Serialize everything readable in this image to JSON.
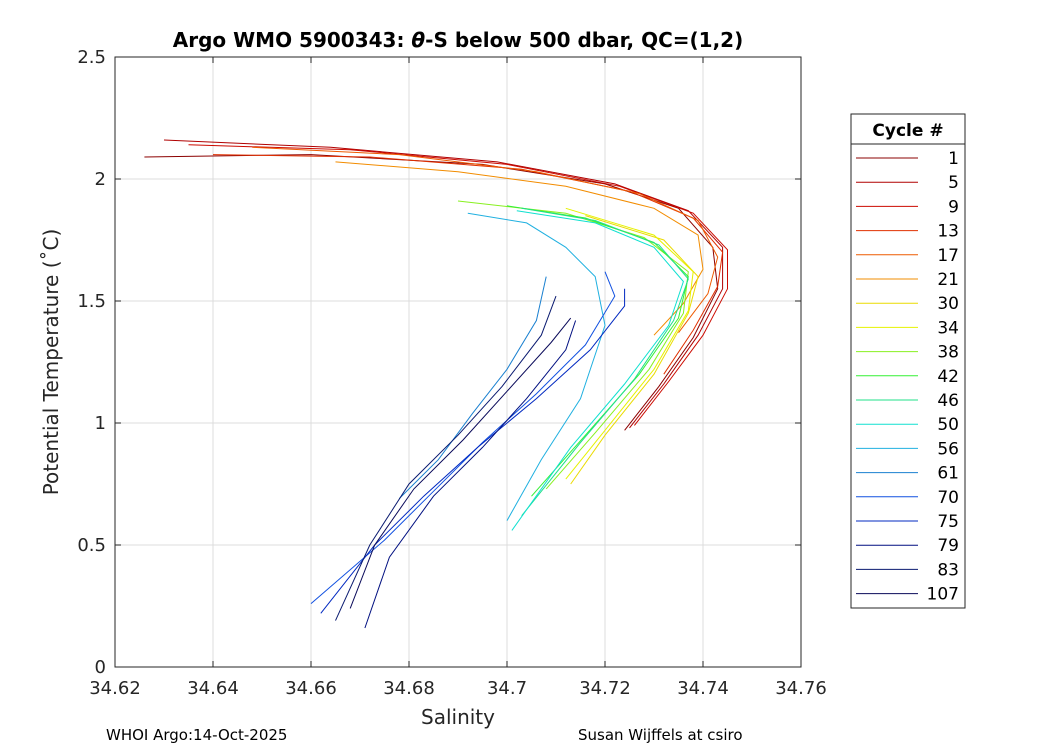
{
  "chart_data": {
    "type": "line",
    "title": "Argo WMO 5900343: θ-S below 500 dbar,  QC=(1,2)",
    "title_parts": [
      "Argo WMO 5900343: ",
      "θ",
      "-S below 500 dbar,  QC=(1,2)"
    ],
    "xlabel": "Salinity",
    "ylabel": "Potential Temperature (˚C)",
    "xlim": [
      34.62,
      34.76
    ],
    "ylim": [
      0,
      2.5
    ],
    "xticks": [
      34.62,
      34.64,
      34.66,
      34.68,
      34.7,
      34.72,
      34.74,
      34.76
    ],
    "xtick_labels": [
      "34.62",
      "34.64",
      "34.66",
      "34.68",
      "34.7",
      "34.72",
      "34.74",
      "34.76"
    ],
    "yticks": [
      0,
      0.5,
      1,
      1.5,
      2,
      2.5
    ],
    "ytick_labels": [
      "0",
      "0.5",
      "1",
      "1.5",
      "2",
      "2.5"
    ],
    "grid": true,
    "legend_title": "Cycle #",
    "legend_position": "outside-right",
    "series": [
      {
        "name": "1",
        "color": "#8b0000",
        "s": [
          34.626,
          34.66,
          34.695,
          34.72,
          34.735,
          34.742,
          34.743,
          34.738,
          34.731,
          34.724
        ],
        "t": [
          2.09,
          2.1,
          2.06,
          1.98,
          1.88,
          1.72,
          1.55,
          1.35,
          1.15,
          0.97
        ]
      },
      {
        "name": "5",
        "color": "#b00000",
        "s": [
          34.63,
          34.664,
          34.698,
          34.722,
          34.737,
          34.744,
          34.744,
          34.739,
          34.732,
          34.725
        ],
        "t": [
          2.16,
          2.13,
          2.07,
          1.98,
          1.87,
          1.72,
          1.55,
          1.36,
          1.16,
          0.98
        ]
      },
      {
        "name": "9",
        "color": "#cc0a00",
        "s": [
          34.635,
          34.668,
          34.7,
          34.723,
          34.738,
          34.745,
          34.745,
          34.74,
          34.733,
          34.726
        ],
        "t": [
          2.14,
          2.12,
          2.06,
          1.97,
          1.86,
          1.71,
          1.55,
          1.36,
          1.17,
          0.99
        ]
      },
      {
        "name": "13",
        "color": "#e03000",
        "s": [
          34.64,
          34.672,
          34.703,
          34.725,
          34.738,
          34.744,
          34.743,
          34.738,
          34.732
        ],
        "t": [
          2.1,
          2.09,
          2.04,
          1.95,
          1.84,
          1.7,
          1.56,
          1.38,
          1.2
        ]
      },
      {
        "name": "17",
        "color": "#ee5a00",
        "s": [
          34.648,
          34.678,
          34.706,
          34.727,
          34.739,
          34.743,
          34.741,
          34.735
        ],
        "t": [
          2.13,
          2.1,
          2.03,
          1.94,
          1.83,
          1.68,
          1.53,
          1.37
        ]
      },
      {
        "name": "21",
        "color": "#f28c00",
        "s": [
          34.665,
          34.69,
          34.712,
          34.73,
          34.739,
          34.74,
          34.736,
          34.73
        ],
        "t": [
          2.07,
          2.03,
          1.97,
          1.88,
          1.77,
          1.63,
          1.49,
          1.36
        ]
      },
      {
        "name": "30",
        "color": "#eadb00",
        "s": [
          34.716,
          34.732,
          34.739,
          34.737,
          34.73,
          34.72,
          34.713
        ],
        "t": [
          1.85,
          1.75,
          1.6,
          1.45,
          1.2,
          0.95,
          0.75
        ]
      },
      {
        "name": "34",
        "color": "#e6f200",
        "s": [
          34.712,
          34.73,
          34.738,
          34.737,
          34.73,
          34.72,
          34.712
        ],
        "t": [
          1.88,
          1.77,
          1.62,
          1.46,
          1.22,
          0.97,
          0.77
        ]
      },
      {
        "name": "38",
        "color": "#88f020",
        "s": [
          34.69,
          34.712,
          34.728,
          34.737,
          34.736,
          34.729,
          34.718,
          34.708
        ],
        "t": [
          1.91,
          1.86,
          1.76,
          1.62,
          1.45,
          1.22,
          0.96,
          0.73
        ]
      },
      {
        "name": "42",
        "color": "#33f033",
        "s": [
          34.7,
          34.716,
          34.73,
          34.737,
          34.735,
          34.727,
          34.716,
          34.705
        ],
        "t": [
          1.89,
          1.84,
          1.74,
          1.6,
          1.43,
          1.2,
          0.95,
          0.7
        ]
      },
      {
        "name": "46",
        "color": "#20e08a",
        "s": [
          34.703,
          34.718,
          34.731,
          34.737,
          34.734,
          34.726,
          34.715,
          34.703
        ],
        "t": [
          1.88,
          1.83,
          1.73,
          1.59,
          1.42,
          1.18,
          0.92,
          0.62
        ]
      },
      {
        "name": "50",
        "color": "#10e0d0",
        "s": [
          34.702,
          34.718,
          34.73,
          34.736,
          34.733,
          34.724,
          34.713,
          34.701
        ],
        "t": [
          1.87,
          1.82,
          1.72,
          1.58,
          1.4,
          1.16,
          0.9,
          0.56
        ]
      },
      {
        "name": "56",
        "color": "#20b0e0",
        "s": [
          34.692,
          34.704,
          34.712,
          34.718,
          34.72,
          34.715,
          34.707,
          34.7
        ],
        "t": [
          1.86,
          1.82,
          1.72,
          1.6,
          1.4,
          1.1,
          0.85,
          0.6
        ]
      },
      {
        "name": "61",
        "color": "#1a80d0",
        "s": [
          34.708,
          34.706,
          34.7,
          34.693,
          34.686,
          34.678
        ],
        "t": [
          1.6,
          1.42,
          1.22,
          1.04,
          0.85,
          0.69
        ]
      },
      {
        "name": "70",
        "color": "#1050e0",
        "s": [
          34.72,
          34.722,
          34.716,
          34.706,
          34.695,
          34.685,
          34.675,
          34.66
        ],
        "t": [
          1.62,
          1.52,
          1.32,
          1.12,
          0.92,
          0.72,
          0.52,
          0.26
        ]
      },
      {
        "name": "75",
        "color": "#0028c0",
        "s": [
          34.724,
          34.724,
          34.717,
          34.706,
          34.694,
          34.683,
          34.673,
          34.662
        ],
        "t": [
          1.55,
          1.48,
          1.3,
          1.1,
          0.9,
          0.7,
          0.5,
          0.22
        ]
      },
      {
        "name": "79",
        "color": "#000f80",
        "s": [
          34.714,
          34.712,
          34.704,
          34.695,
          34.685,
          34.676,
          34.671
        ],
        "t": [
          1.42,
          1.3,
          1.1,
          0.9,
          0.7,
          0.45,
          0.16
        ]
      },
      {
        "name": "83",
        "color": "#0a1a70",
        "s": [
          34.71,
          34.707,
          34.699,
          34.69,
          34.68,
          34.672,
          34.665
        ],
        "t": [
          1.52,
          1.36,
          1.15,
          0.95,
          0.75,
          0.5,
          0.19
        ]
      },
      {
        "name": "107",
        "color": "#0a0a5a",
        "s": [
          34.713,
          34.709,
          34.7,
          34.691,
          34.681,
          34.673,
          34.668
        ],
        "t": [
          1.43,
          1.33,
          1.13,
          0.93,
          0.73,
          0.5,
          0.24
        ]
      }
    ]
  },
  "footer": {
    "left": "WHOI Argo:14-Oct-2025",
    "right": "Susan Wijffels at csiro"
  }
}
